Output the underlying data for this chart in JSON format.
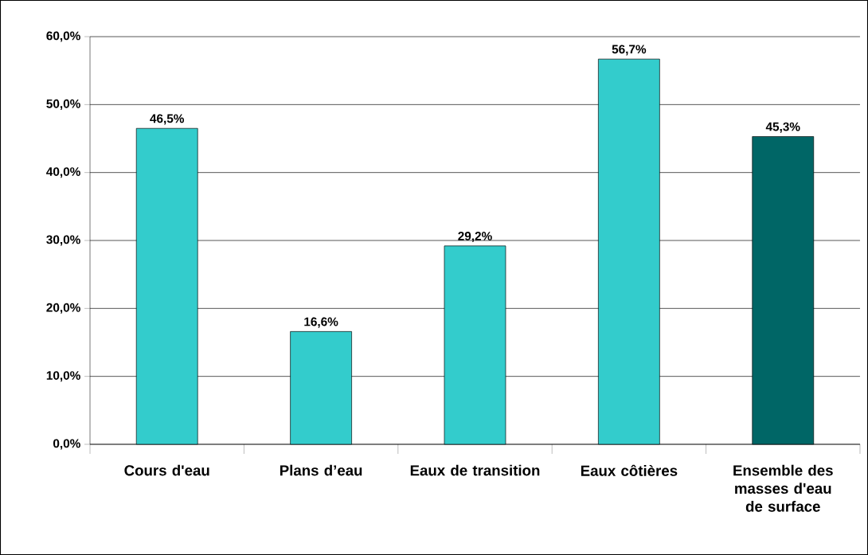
{
  "chart_data": {
    "type": "bar",
    "categories": [
      "Cours d'eau",
      "Plans d’eau",
      "Eaux de transition",
      "Eaux côtières",
      "Ensemble des masses d'eau de surface"
    ],
    "values": [
      46.5,
      16.6,
      29.2,
      56.7,
      45.3
    ],
    "colors": [
      "#33cccc",
      "#33cccc",
      "#33cccc",
      "#33cccc",
      "#006666"
    ],
    "value_labels": [
      "46,5%",
      "16,6%",
      "29,2%",
      "56,7%",
      "45,3%"
    ],
    "ylim": [
      0,
      60
    ],
    "yticks": [
      {
        "value": 0,
        "label": "0,0%"
      },
      {
        "value": 10,
        "label": "10,0%"
      },
      {
        "value": 20,
        "label": "20,0%"
      },
      {
        "value": 30,
        "label": "30,0%"
      },
      {
        "value": 40,
        "label": "40,0%"
      },
      {
        "value": 50,
        "label": "50,0%"
      },
      {
        "value": 60,
        "label": "60,0%"
      }
    ],
    "grid": "y"
  }
}
